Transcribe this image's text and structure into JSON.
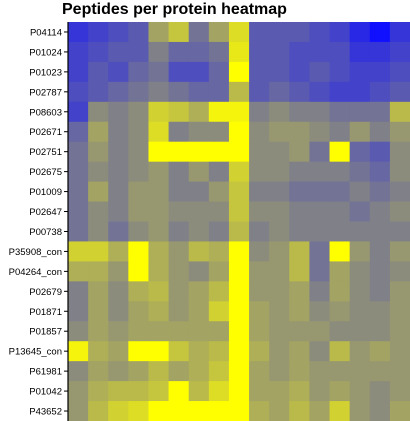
{
  "chart_data": {
    "type": "heatmap",
    "title": "Peptides per protein heatmap",
    "row_labels": [
      "P04114",
      "P01024",
      "P01023",
      "P02787",
      "P08603",
      "P02671",
      "P02751",
      "P02675",
      "P01009",
      "P02647",
      "P00738",
      "P35908_con",
      "P04264_con",
      "P02679",
      "P01871",
      "P01857",
      "P13645_con",
      "P61981",
      "P01042",
      "P43652"
    ],
    "column_count": 17,
    "value_range": [
      0,
      1
    ],
    "color_scale": {
      "low": "#1010ff",
      "mid": "#8c8c7c",
      "high": "#ffff00"
    },
    "values": [
      [
        0.15,
        0.2,
        0.25,
        0.3,
        0.6,
        0.75,
        0.4,
        0.6,
        0.85,
        0.3,
        0.3,
        0.3,
        0.25,
        0.2,
        0.1,
        0.0,
        0.15
      ],
      [
        0.2,
        0.25,
        0.3,
        0.3,
        0.45,
        0.35,
        0.35,
        0.4,
        0.9,
        0.3,
        0.3,
        0.25,
        0.25,
        0.25,
        0.15,
        0.15,
        0.2
      ],
      [
        0.2,
        0.3,
        0.25,
        0.35,
        0.4,
        0.25,
        0.25,
        0.35,
        1.0,
        0.3,
        0.3,
        0.25,
        0.3,
        0.25,
        0.2,
        0.2,
        0.25
      ],
      [
        0.25,
        0.3,
        0.35,
        0.4,
        0.45,
        0.4,
        0.35,
        0.35,
        0.7,
        0.3,
        0.35,
        0.3,
        0.25,
        0.2,
        0.2,
        0.25,
        0.3
      ],
      [
        0.2,
        0.5,
        0.45,
        0.5,
        0.8,
        0.75,
        0.65,
        0.95,
        0.95,
        0.45,
        0.5,
        0.45,
        0.45,
        0.4,
        0.4,
        0.4,
        0.7
      ],
      [
        0.35,
        0.6,
        0.45,
        0.5,
        0.85,
        0.45,
        0.5,
        0.5,
        1.0,
        0.5,
        0.55,
        0.55,
        0.5,
        0.45,
        0.55,
        0.45,
        0.55
      ],
      [
        0.4,
        0.55,
        0.45,
        0.5,
        1.0,
        1.0,
        1.0,
        1.0,
        1.0,
        0.5,
        0.5,
        0.55,
        0.4,
        1.0,
        0.35,
        0.3,
        0.5
      ],
      [
        0.4,
        0.5,
        0.45,
        0.5,
        0.55,
        0.45,
        0.55,
        0.45,
        0.8,
        0.5,
        0.5,
        0.45,
        0.45,
        0.45,
        0.4,
        0.35,
        0.5
      ],
      [
        0.4,
        0.6,
        0.45,
        0.55,
        0.55,
        0.45,
        0.45,
        0.55,
        0.75,
        0.45,
        0.45,
        0.4,
        0.4,
        0.4,
        0.45,
        0.4,
        0.45
      ],
      [
        0.4,
        0.5,
        0.45,
        0.55,
        0.55,
        0.5,
        0.5,
        0.5,
        0.75,
        0.5,
        0.5,
        0.45,
        0.45,
        0.45,
        0.4,
        0.45,
        0.5
      ],
      [
        0.4,
        0.5,
        0.4,
        0.5,
        0.55,
        0.45,
        0.5,
        0.45,
        0.7,
        0.45,
        0.5,
        0.45,
        0.45,
        0.45,
        0.45,
        0.45,
        0.45
      ],
      [
        0.8,
        0.8,
        0.65,
        1.0,
        0.65,
        0.55,
        0.7,
        0.65,
        1.0,
        0.5,
        0.55,
        0.7,
        0.4,
        1.0,
        0.55,
        0.45,
        0.55
      ],
      [
        0.65,
        0.65,
        0.55,
        1.0,
        0.65,
        0.55,
        0.5,
        0.6,
        1.0,
        0.55,
        0.55,
        0.7,
        0.4,
        0.6,
        0.5,
        0.45,
        0.5
      ],
      [
        0.45,
        0.6,
        0.5,
        0.65,
        0.7,
        0.55,
        0.6,
        0.7,
        1.0,
        0.55,
        0.55,
        0.6,
        0.45,
        0.6,
        0.5,
        0.45,
        0.55
      ],
      [
        0.45,
        0.6,
        0.5,
        0.6,
        0.65,
        0.55,
        0.6,
        0.8,
        1.0,
        0.6,
        0.55,
        0.6,
        0.5,
        0.55,
        0.5,
        0.5,
        0.55
      ],
      [
        0.5,
        0.6,
        0.55,
        0.6,
        0.6,
        0.6,
        0.6,
        0.6,
        1.0,
        0.6,
        0.55,
        0.55,
        0.55,
        0.5,
        0.5,
        0.5,
        0.55
      ],
      [
        0.95,
        0.65,
        0.6,
        1.0,
        1.0,
        0.75,
        0.65,
        0.7,
        1.0,
        0.65,
        0.55,
        0.6,
        0.5,
        0.7,
        0.55,
        0.6,
        0.55
      ],
      [
        0.5,
        0.6,
        0.55,
        0.6,
        0.7,
        0.6,
        0.65,
        0.75,
        1.0,
        0.6,
        0.55,
        0.6,
        0.55,
        0.55,
        0.55,
        0.55,
        0.55
      ],
      [
        0.55,
        0.65,
        0.7,
        0.7,
        0.75,
        1.0,
        0.7,
        0.85,
        1.0,
        0.6,
        0.6,
        0.65,
        0.55,
        0.6,
        0.55,
        0.5,
        0.55
      ],
      [
        0.55,
        0.7,
        0.8,
        0.85,
        1.0,
        1.0,
        1.0,
        1.0,
        1.0,
        0.65,
        0.6,
        0.7,
        0.6,
        0.8,
        0.55,
        0.5,
        0.6
      ]
    ]
  }
}
